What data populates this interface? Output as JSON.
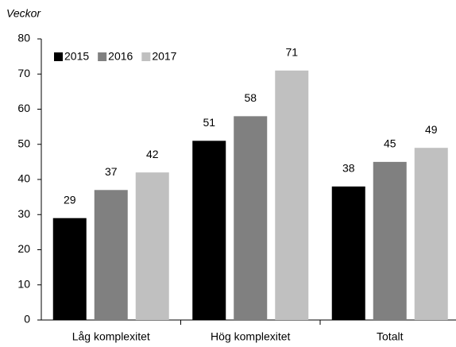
{
  "chart_data": {
    "type": "bar",
    "y_label": "Veckor",
    "categories": [
      "Låg komplexitet",
      "Hög komplexitet",
      "Totalt"
    ],
    "series": [
      {
        "name": "2015",
        "color": "#000000",
        "values": [
          29,
          51,
          38
        ]
      },
      {
        "name": "2016",
        "color": "#808080",
        "values": [
          37,
          58,
          45
        ]
      },
      {
        "name": "2017",
        "color": "#c0c0c0",
        "values": [
          42,
          71,
          49
        ]
      }
    ],
    "ylim": [
      0,
      80
    ],
    "yticks": [
      0,
      10,
      20,
      30,
      40,
      50,
      60,
      70,
      80
    ],
    "grid": false,
    "legend": "upper left"
  }
}
